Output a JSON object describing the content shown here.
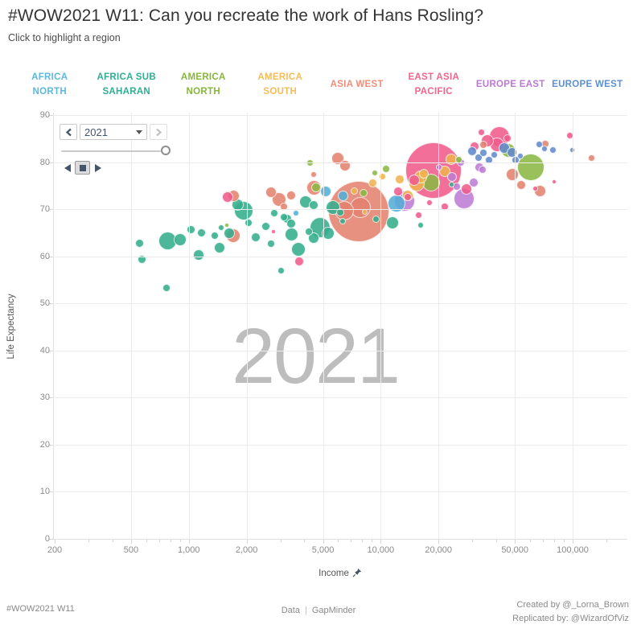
{
  "header": {
    "title": "#WOW2021 W11: Can you recreate the work of Hans Rosling?",
    "subtitle": "Click to highlight a region"
  },
  "legend": {
    "items": [
      {
        "id": "africa-north",
        "lines": [
          "AFRICA",
          "NORTH"
        ],
        "color": "#5bb8de"
      },
      {
        "id": "africa-sub-saharan",
        "lines": [
          "AFRICA SUB",
          "SAHARAN"
        ],
        "color": "#2eaf93"
      },
      {
        "id": "america-north",
        "lines": [
          "AMERICA",
          "NORTH"
        ],
        "color": "#87b63c"
      },
      {
        "id": "america-south",
        "lines": [
          "AMERICA",
          "SOUTH"
        ],
        "color": "#f5bd58"
      },
      {
        "id": "asia-west",
        "lines": [
          "ASIA WEST"
        ],
        "color": "#f08d79"
      },
      {
        "id": "east-asia-pacific",
        "lines": [
          "EAST ASIA",
          "PACIFIC"
        ],
        "color": "#f2648e"
      },
      {
        "id": "europe-east",
        "lines": [
          "EUROPE EAST"
        ],
        "color": "#bc79d4"
      },
      {
        "id": "europe-west",
        "lines": [
          "EUROPE WEST"
        ],
        "color": "#5d8fd0"
      }
    ]
  },
  "controls": {
    "year_value": "2021",
    "slider_position": "max",
    "playback": [
      "step-back",
      "stop",
      "step-forward"
    ]
  },
  "chart_data": {
    "type": "scatter",
    "watermark": "2021",
    "xlabel": "Income",
    "ylabel": "Life Expectancy",
    "x_scale": "log",
    "xlim": [
      200,
      190000
    ],
    "ylim": [
      0,
      90
    ],
    "x_ticks": [
      200,
      500,
      1000,
      2000,
      5000,
      10000,
      20000,
      50000,
      100000
    ],
    "x_tick_labels": [
      "200",
      "500",
      "1,000",
      "2,000",
      "5,000",
      "10,000",
      "20,000",
      "50,000",
      "100,000"
    ],
    "x_minor_ticks": [
      300,
      400,
      600,
      700,
      800,
      900,
      3000,
      4000,
      6000,
      7000,
      8000,
      9000,
      30000,
      40000,
      60000,
      70000,
      80000,
      90000,
      150000
    ],
    "y_ticks": [
      0,
      10,
      20,
      30,
      40,
      50,
      60,
      70,
      80,
      90
    ],
    "legend_position": "top",
    "grid": true,
    "series": [
      {
        "region": "africa-north",
        "color": "#54afd8",
        "points": [
          [
            5160,
            73.8,
            7
          ],
          [
            6390,
            72.9,
            6.5
          ],
          [
            12100,
            71.2,
            11
          ],
          [
            3620,
            69.2,
            4
          ]
        ]
      },
      {
        "region": "africa-sub-saharan",
        "color": "#35ae8d",
        "points": [
          [
            556,
            62.7,
            5.5
          ],
          [
            570,
            59.4,
            5.5
          ],
          [
            773,
            63.2,
            11.5
          ],
          [
            900,
            63.5,
            8
          ],
          [
            1030,
            65.7,
            5.5
          ],
          [
            1160,
            64.9,
            5.5
          ],
          [
            1130,
            60.3,
            7
          ],
          [
            765,
            53.3,
            5
          ],
          [
            1370,
            64.4,
            5
          ],
          [
            1440,
            61.8,
            7
          ],
          [
            1480,
            66.1,
            4
          ],
          [
            1620,
            64.9,
            7
          ],
          [
            1790,
            70.9,
            7.5
          ],
          [
            1930,
            69.7,
            12
          ],
          [
            2040,
            67.1,
            5
          ],
          [
            2230,
            64.0,
            6
          ],
          [
            3040,
            56.9,
            4.5
          ],
          [
            2510,
            66.4,
            5.5
          ],
          [
            2690,
            62.7,
            5
          ],
          [
            2800,
            69.2,
            5
          ],
          [
            3250,
            68.0,
            6
          ],
          [
            3430,
            66.9,
            6
          ],
          [
            3120,
            68.3,
            5
          ],
          [
            3430,
            64.7,
            8.5
          ],
          [
            3720,
            61.5,
            9
          ],
          [
            4220,
            65.2,
            5
          ],
          [
            4060,
            71.6,
            8
          ],
          [
            4470,
            70.9,
            6
          ],
          [
            4830,
            66.1,
            13
          ],
          [
            5320,
            64.9,
            8
          ],
          [
            4470,
            63.9,
            7
          ],
          [
            5640,
            70.4,
            9
          ],
          [
            6150,
            69.3,
            5
          ],
          [
            6330,
            67.5,
            4
          ],
          [
            9480,
            67.8,
            4.5
          ],
          [
            11500,
            67.1,
            8
          ],
          [
            16100,
            66.6,
            4
          ],
          [
            23500,
            75.3,
            3.5
          ]
        ]
      },
      {
        "region": "america-north",
        "color": "#8cb845",
        "points": [
          [
            60500,
            78.9,
            17
          ],
          [
            46100,
            82.5,
            9
          ],
          [
            18300,
            75.7,
            11
          ],
          [
            25500,
            80.6,
            4.5
          ],
          [
            4300,
            79.9,
            4.5
          ],
          [
            1570,
            66.6,
            3
          ],
          [
            10700,
            78.6,
            5
          ],
          [
            9280,
            77.7,
            4
          ],
          [
            4600,
            74.6,
            6
          ],
          [
            8130,
            73.4,
            5
          ]
        ]
      },
      {
        "region": "america-south",
        "color": "#f0b34e",
        "points": [
          [
            23300,
            80.6,
            7
          ],
          [
            21600,
            78.0,
            7
          ],
          [
            16700,
            77.5,
            6
          ],
          [
            15400,
            75.5,
            10
          ],
          [
            13900,
            72.9,
            7
          ],
          [
            16100,
            76.9,
            8
          ],
          [
            12600,
            76.3,
            6
          ],
          [
            8250,
            69.5,
            3.5
          ],
          [
            10200,
            76.9,
            4.5
          ],
          [
            9100,
            75.5,
            5.5
          ],
          [
            7260,
            73.9,
            4.5
          ]
        ]
      },
      {
        "region": "asia-west",
        "color": "#e4826f",
        "points": [
          [
            7700,
            69.5,
            38
          ],
          [
            6470,
            69.7,
            12
          ],
          [
            7850,
            70.4,
            13
          ],
          [
            1710,
            72.9,
            7.5
          ],
          [
            1710,
            64.4,
            9
          ],
          [
            2670,
            73.6,
            7
          ],
          [
            2940,
            72.1,
            9
          ],
          [
            3430,
            72.9,
            6
          ],
          [
            3120,
            70.5,
            5
          ],
          [
            4510,
            74.6,
            9.5
          ],
          [
            4470,
            77.4,
            4
          ],
          [
            5960,
            80.8,
            8
          ],
          [
            6530,
            79.2,
            7
          ],
          [
            34300,
            83.7,
            5
          ],
          [
            48300,
            77.4,
            8
          ],
          [
            53900,
            75.1,
            6
          ],
          [
            67800,
            73.9,
            7.5
          ],
          [
            72200,
            83.8,
            5
          ],
          [
            125000,
            80.8,
            4.5
          ]
        ]
      },
      {
        "region": "east-asia-pacific",
        "color": "#f05c8c",
        "points": [
          [
            18900,
            78.2,
            35
          ],
          [
            1600,
            72.6,
            7
          ],
          [
            12300,
            73.8,
            6
          ],
          [
            13800,
            72.6,
            5
          ],
          [
            14900,
            76.2,
            7
          ],
          [
            15700,
            68.7,
            4.5
          ],
          [
            17900,
            71.4,
            4
          ],
          [
            21600,
            70.5,
            5
          ],
          [
            2760,
            65.2,
            3
          ],
          [
            3760,
            58.9,
            6
          ],
          [
            28100,
            74.3,
            7
          ],
          [
            30700,
            83.3,
            6
          ],
          [
            33400,
            86.4,
            4.5
          ],
          [
            35800,
            84.5,
            8
          ],
          [
            40200,
            83.7,
            9
          ],
          [
            41500,
            85.4,
            13
          ],
          [
            45600,
            85.0,
            5
          ],
          [
            63900,
            74.3,
            3.5
          ],
          [
            79800,
            75.8,
            3
          ],
          [
            97100,
            85.6,
            4.5
          ]
        ]
      },
      {
        "region": "europe-east",
        "color": "#be7dd4",
        "points": [
          [
            13300,
            71.7,
            13
          ],
          [
            27300,
            72.2,
            13
          ],
          [
            20100,
            78.9,
            4
          ],
          [
            23500,
            76.9,
            6
          ],
          [
            24900,
            74.8,
            5
          ],
          [
            26200,
            79.9,
            5
          ],
          [
            32500,
            78.9,
            6
          ],
          [
            34000,
            78.4,
            5
          ],
          [
            30500,
            75.7,
            6
          ]
        ]
      },
      {
        "region": "europe-west",
        "color": "#6289cc",
        "points": [
          [
            30000,
            82.3,
            6
          ],
          [
            32300,
            80.9,
            5
          ],
          [
            34200,
            82.0,
            5
          ],
          [
            36800,
            80.4,
            5
          ],
          [
            39200,
            81.5,
            4.5
          ],
          [
            44100,
            83.0,
            7
          ],
          [
            48100,
            82.0,
            6.5
          ],
          [
            50400,
            80.4,
            5
          ],
          [
            53400,
            81.3,
            4
          ],
          [
            66900,
            83.7,
            4.5
          ],
          [
            71400,
            82.8,
            4
          ],
          [
            78700,
            82.6,
            4.5
          ],
          [
            99600,
            82.5,
            3.5
          ]
        ]
      }
    ]
  },
  "footer": {
    "left": "#WOW2021 W11",
    "center_left": "Data",
    "center_right": "GapMinder",
    "right_line1": "Created by @_Lorna_Brown",
    "right_line2": "Replicated by: @WizardOfViz"
  }
}
